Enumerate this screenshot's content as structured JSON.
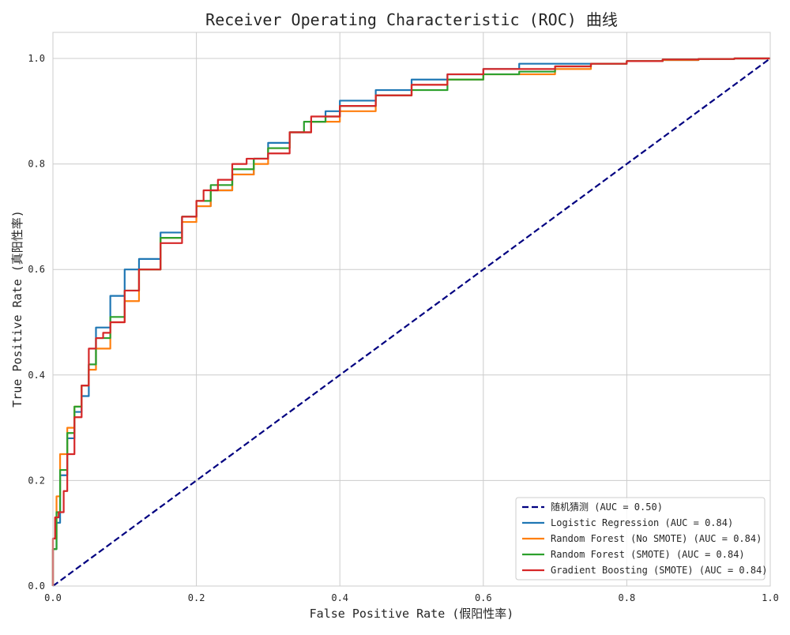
{
  "chart_data": {
    "type": "line",
    "title": "Receiver Operating Characteristic (ROC) 曲线",
    "xlabel": "False Positive Rate (假阳性率)",
    "ylabel": "True Positive Rate (真阳性率)",
    "xlim": [
      0.0,
      1.0
    ],
    "ylim": [
      0.0,
      1.05
    ],
    "xticks": [
      "0.0",
      "0.2",
      "0.4",
      "0.6",
      "0.8",
      "1.0"
    ],
    "yticks": [
      "0.0",
      "0.2",
      "0.4",
      "0.6",
      "0.8",
      "1.0"
    ],
    "grid": true,
    "legend_position": "lower right",
    "series": [
      {
        "name": "随机猜测 (AUC = 0.50)",
        "color": "#000080",
        "style": "dashed",
        "x": [
          0.0,
          1.0
        ],
        "y": [
          0.0,
          1.0
        ]
      },
      {
        "name": "Logistic Regression (AUC = 0.84)",
        "color": "#1f77b4",
        "style": "solid",
        "x": [
          0.0,
          0.005,
          0.01,
          0.02,
          0.03,
          0.04,
          0.05,
          0.06,
          0.08,
          0.1,
          0.12,
          0.15,
          0.18,
          0.2,
          0.22,
          0.25,
          0.28,
          0.3,
          0.33,
          0.36,
          0.38,
          0.4,
          0.45,
          0.5,
          0.55,
          0.6,
          0.65,
          0.7,
          0.75,
          0.8,
          0.85,
          0.9,
          0.95,
          1.0
        ],
        "y": [
          0.0,
          0.07,
          0.12,
          0.21,
          0.28,
          0.33,
          0.36,
          0.42,
          0.49,
          0.55,
          0.6,
          0.62,
          0.67,
          0.7,
          0.72,
          0.75,
          0.78,
          0.81,
          0.84,
          0.86,
          0.88,
          0.9,
          0.92,
          0.94,
          0.96,
          0.97,
          0.98,
          0.99,
          0.99,
          0.99,
          0.995,
          0.997,
          0.999,
          1.0
        ]
      },
      {
        "name": "Random Forest (No SMOTE) (AUC = 0.84)",
        "color": "#ff7f0e",
        "style": "solid",
        "x": [
          0.0,
          0.005,
          0.01,
          0.02,
          0.03,
          0.04,
          0.05,
          0.06,
          0.08,
          0.1,
          0.12,
          0.15,
          0.18,
          0.2,
          0.22,
          0.25,
          0.28,
          0.3,
          0.33,
          0.36,
          0.4,
          0.45,
          0.5,
          0.55,
          0.6,
          0.65,
          0.7,
          0.75,
          0.8,
          0.85,
          0.9,
          0.95,
          1.0
        ],
        "y": [
          0.0,
          0.09,
          0.17,
          0.25,
          0.3,
          0.34,
          0.38,
          0.41,
          0.45,
          0.5,
          0.54,
          0.6,
          0.66,
          0.69,
          0.72,
          0.75,
          0.78,
          0.8,
          0.83,
          0.86,
          0.88,
          0.9,
          0.93,
          0.95,
          0.96,
          0.97,
          0.97,
          0.98,
          0.99,
          0.995,
          0.997,
          0.999,
          1.0
        ]
      },
      {
        "name": "Random Forest (SMOTE) (AUC = 0.84)",
        "color": "#2ca02c",
        "style": "solid",
        "x": [
          0.0,
          0.005,
          0.01,
          0.02,
          0.03,
          0.04,
          0.05,
          0.06,
          0.08,
          0.1,
          0.12,
          0.15,
          0.18,
          0.2,
          0.22,
          0.25,
          0.28,
          0.3,
          0.33,
          0.35,
          0.38,
          0.4,
          0.45,
          0.5,
          0.55,
          0.6,
          0.65,
          0.7,
          0.75,
          0.8,
          0.85,
          0.9,
          0.95,
          1.0
        ],
        "y": [
          0.0,
          0.07,
          0.14,
          0.22,
          0.29,
          0.34,
          0.38,
          0.42,
          0.47,
          0.51,
          0.56,
          0.6,
          0.66,
          0.7,
          0.73,
          0.76,
          0.79,
          0.81,
          0.83,
          0.86,
          0.88,
          0.89,
          0.91,
          0.93,
          0.94,
          0.96,
          0.97,
          0.975,
          0.985,
          0.99,
          0.995,
          0.998,
          0.999,
          1.0
        ]
      },
      {
        "name": "Gradient Boosting (SMOTE) (AUC = 0.84)",
        "color": "#d62728",
        "style": "solid",
        "x": [
          0.0,
          0.003,
          0.008,
          0.015,
          0.02,
          0.03,
          0.04,
          0.05,
          0.06,
          0.07,
          0.08,
          0.1,
          0.12,
          0.15,
          0.18,
          0.2,
          0.21,
          0.23,
          0.25,
          0.27,
          0.29,
          0.3,
          0.33,
          0.36,
          0.4,
          0.45,
          0.5,
          0.55,
          0.6,
          0.65,
          0.7,
          0.75,
          0.8,
          0.85,
          0.9,
          0.95,
          1.0
        ],
        "y": [
          0.0,
          0.09,
          0.13,
          0.14,
          0.18,
          0.25,
          0.32,
          0.38,
          0.45,
          0.47,
          0.48,
          0.5,
          0.56,
          0.6,
          0.65,
          0.7,
          0.73,
          0.75,
          0.77,
          0.8,
          0.81,
          0.81,
          0.82,
          0.86,
          0.89,
          0.91,
          0.93,
          0.95,
          0.97,
          0.98,
          0.98,
          0.985,
          0.99,
          0.995,
          0.998,
          0.999,
          1.0
        ]
      }
    ]
  }
}
